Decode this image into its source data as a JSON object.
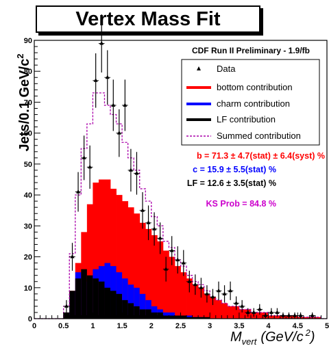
{
  "chart_data": {
    "type": "bar",
    "title": "Vertex Mass Fit",
    "subtitle": "CDF Run II Preliminary - 1.9/fb",
    "xlabel_main": "M",
    "xlabel_sub": "vert",
    "xlabel_units": "(GeV/c",
    "xlabel_exp": "2",
    "xlabel_close": ")",
    "ylabel": "Jets/0.1 GeV/c",
    "ylabel_exp": "2",
    "xlim": [
      0,
      5
    ],
    "ylim": [
      0,
      90
    ],
    "bin_width": 0.1,
    "x_ticks": [
      "0",
      "0.5",
      "1",
      "1.5",
      "2",
      "2.5",
      "3",
      "3.5",
      "4",
      "4.5",
      "5"
    ],
    "y_ticks": [
      "0",
      "10",
      "20",
      "30",
      "40",
      "50",
      "60",
      "70",
      "80",
      "90"
    ],
    "bin_starts": [
      0,
      0.1,
      0.2,
      0.3,
      0.4,
      0.5,
      0.6,
      0.7,
      0.8,
      0.9,
      1.0,
      1.1,
      1.2,
      1.3,
      1.4,
      1.5,
      1.6,
      1.7,
      1.8,
      1.9,
      2.0,
      2.1,
      2.2,
      2.3,
      2.4,
      2.5,
      2.6,
      2.7,
      2.8,
      2.9,
      3.0,
      3.1,
      3.2,
      3.3,
      3.4,
      3.5,
      3.6,
      3.7,
      3.8,
      3.9,
      4.0,
      4.1,
      4.2,
      4.3,
      4.4,
      4.5,
      4.6,
      4.7,
      4.8,
      4.9
    ],
    "series": [
      {
        "name": "Data",
        "type": "points",
        "values": [
          0,
          0,
          0,
          0,
          0,
          4,
          20,
          41,
          52,
          49,
          77,
          89,
          78,
          69,
          60,
          69,
          48,
          47,
          35,
          31,
          29,
          26,
          16,
          22,
          19,
          18,
          12,
          11,
          10,
          8,
          7,
          9,
          8,
          9,
          5,
          4,
          2,
          2,
          3,
          1,
          2,
          2,
          1,
          1,
          1,
          1,
          0,
          1,
          0,
          0
        ],
        "errors": [
          0,
          0,
          0,
          0,
          0,
          2,
          4.5,
          6.4,
          7.2,
          7,
          8.8,
          9.4,
          8.8,
          8.3,
          7.7,
          8.3,
          6.9,
          6.9,
          5.9,
          5.6,
          5.4,
          5.1,
          4,
          4.7,
          4.4,
          4.2,
          3.5,
          3.3,
          3.2,
          2.8,
          2.6,
          3,
          2.8,
          3,
          2.2,
          2,
          1.4,
          1.4,
          1.7,
          1,
          1.4,
          1.4,
          1,
          1,
          1,
          1,
          0,
          1,
          0,
          0
        ]
      },
      {
        "name": "bottom contribution",
        "color": "#ff0000",
        "values": [
          0,
          0,
          0,
          0,
          0,
          2,
          9,
          18,
          28,
          37,
          44,
          45,
          45,
          42,
          40,
          38,
          36,
          34,
          31,
          29,
          27,
          25,
          22,
          20,
          17,
          15,
          13,
          11,
          10,
          8,
          7,
          6,
          5,
          4,
          4,
          3,
          3,
          2,
          2,
          2,
          1,
          1,
          1,
          1,
          1,
          0.5,
          0.5,
          0.5,
          0.5,
          0
        ]
      },
      {
        "name": "charm contribution",
        "color": "#0000ff",
        "values": [
          0,
          0,
          0,
          0,
          0,
          2,
          8,
          15,
          13,
          12,
          16,
          17,
          18,
          17,
          15,
          13,
          11,
          10,
          8,
          6,
          4,
          3,
          2,
          2,
          1,
          1,
          1,
          0.5,
          0.5,
          0,
          0,
          0,
          0,
          0,
          0,
          0,
          0,
          0,
          0,
          0,
          0,
          0,
          0,
          0,
          0,
          0,
          0,
          0,
          0,
          0
        ]
      },
      {
        "name": "LF contribution",
        "color": "#000000",
        "values": [
          0,
          0,
          0,
          0,
          0,
          2,
          9,
          13,
          16,
          14,
          13,
          12,
          10,
          9,
          8,
          6,
          5,
          4,
          3,
          3,
          2,
          2,
          1,
          1,
          1,
          1,
          0.5,
          0.5,
          0.5,
          0.5,
          0,
          0,
          0,
          0,
          0,
          0,
          0,
          0,
          0,
          0,
          0,
          0,
          0,
          0,
          0,
          0,
          0,
          0,
          0,
          0
        ]
      },
      {
        "name": "Summed contribution",
        "color": "#aa00aa",
        "style": "dashed",
        "values": [
          0,
          0,
          0,
          0,
          0,
          4,
          21,
          40,
          55,
          63,
          73,
          73,
          69,
          66,
          63,
          57,
          52,
          48,
          42,
          38,
          33,
          30,
          25,
          23,
          19,
          17,
          14,
          12,
          11,
          9,
          7,
          6,
          5,
          4,
          4,
          3,
          3,
          2,
          2,
          2,
          1,
          1,
          1,
          1,
          1,
          0.5,
          0.5,
          0.5,
          0.5,
          0
        ]
      }
    ],
    "legend": {
      "position": "top-right"
    },
    "annotations": [
      {
        "text": "b = 71.3 ± 4.7(stat) ± 6.4(syst) %",
        "color": "#ff0000"
      },
      {
        "text": "c = 15.9 ± 5.5(stat) %",
        "color": "#0000ff"
      },
      {
        "text": "LF = 12.6 ± 3.5(stat) %",
        "color": "#000000"
      },
      {
        "text": "KS Prob = 84.8 %",
        "color": "#cc00cc"
      }
    ]
  }
}
